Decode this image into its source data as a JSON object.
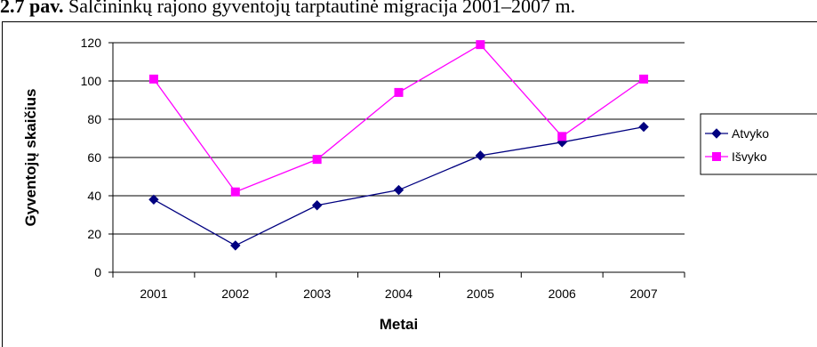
{
  "caption": {
    "number": "2.7 pav.",
    "text": "Šalčininkų rajono gyventojų tarptautinė migracija 2001–2007 m."
  },
  "chart_data": {
    "type": "line",
    "categories": [
      "2001",
      "2002",
      "2003",
      "2004",
      "2005",
      "2006",
      "2007"
    ],
    "series": [
      {
        "name": "Atvyko",
        "values": [
          38,
          14,
          35,
          43,
          61,
          68,
          76
        ],
        "color": "#000080",
        "marker": "diamond"
      },
      {
        "name": "Išvyko",
        "values": [
          101,
          42,
          59,
          94,
          119,
          71,
          101
        ],
        "color": "#ff00ff",
        "marker": "square"
      }
    ],
    "xlabel": "Metai",
    "ylabel": "Gyventojų skaičius",
    "ylim": [
      0,
      120
    ],
    "yticks": [
      0,
      20,
      40,
      60,
      80,
      100,
      120
    ],
    "grid": true,
    "legend_position": "right"
  }
}
